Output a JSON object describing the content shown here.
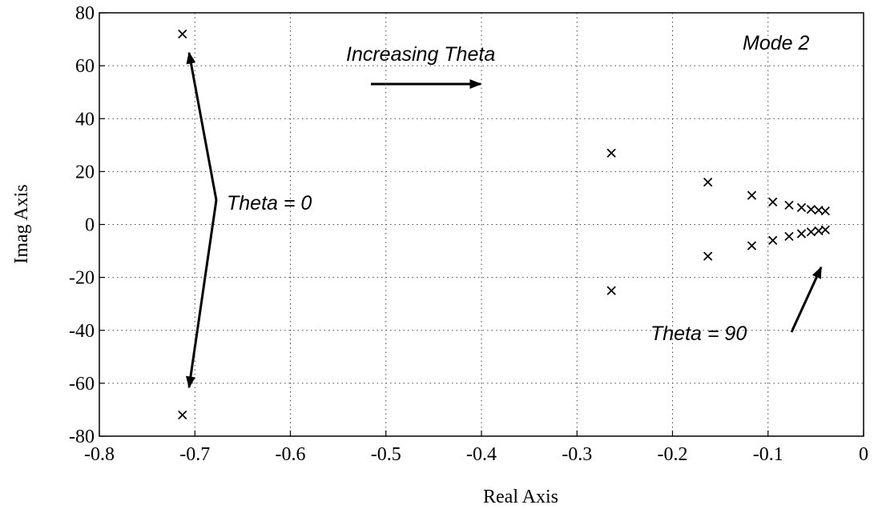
{
  "chart_data": {
    "type": "scatter",
    "x_label": "Real Axis",
    "y_label": "Imag Axis",
    "annotations": [
      "Increasing Theta",
      "Mode 2",
      "Theta = 0",
      "Theta = 90"
    ],
    "x": [
      -0.713,
      -0.713,
      -0.264,
      -0.264,
      -0.163,
      -0.163,
      -0.117,
      -0.117,
      -0.095,
      -0.095,
      -0.078,
      -0.078,
      -0.065,
      -0.065,
      -0.055,
      -0.055,
      -0.047,
      -0.047,
      -0.04,
      -0.04
    ],
    "values": [
      72,
      -72,
      27,
      -25,
      16,
      -12,
      11,
      -8,
      8.5,
      -6,
      7.3,
      -4.5,
      6.4,
      -3.5,
      5.7,
      -2.8,
      5.4,
      -2.4,
      5.1,
      -2
    ],
    "color": "#000000",
    "xlim": [
      -0.8,
      0
    ],
    "xticks": [
      -0.8,
      -0.7,
      -0.6,
      -0.5,
      -0.4,
      -0.3,
      -0.2,
      -0.1,
      0
    ],
    "ylim": [
      -80,
      80
    ],
    "yticks": [
      -80,
      -60,
      -40,
      -20,
      0,
      20,
      40,
      60,
      80
    ],
    "grid": true
  }
}
